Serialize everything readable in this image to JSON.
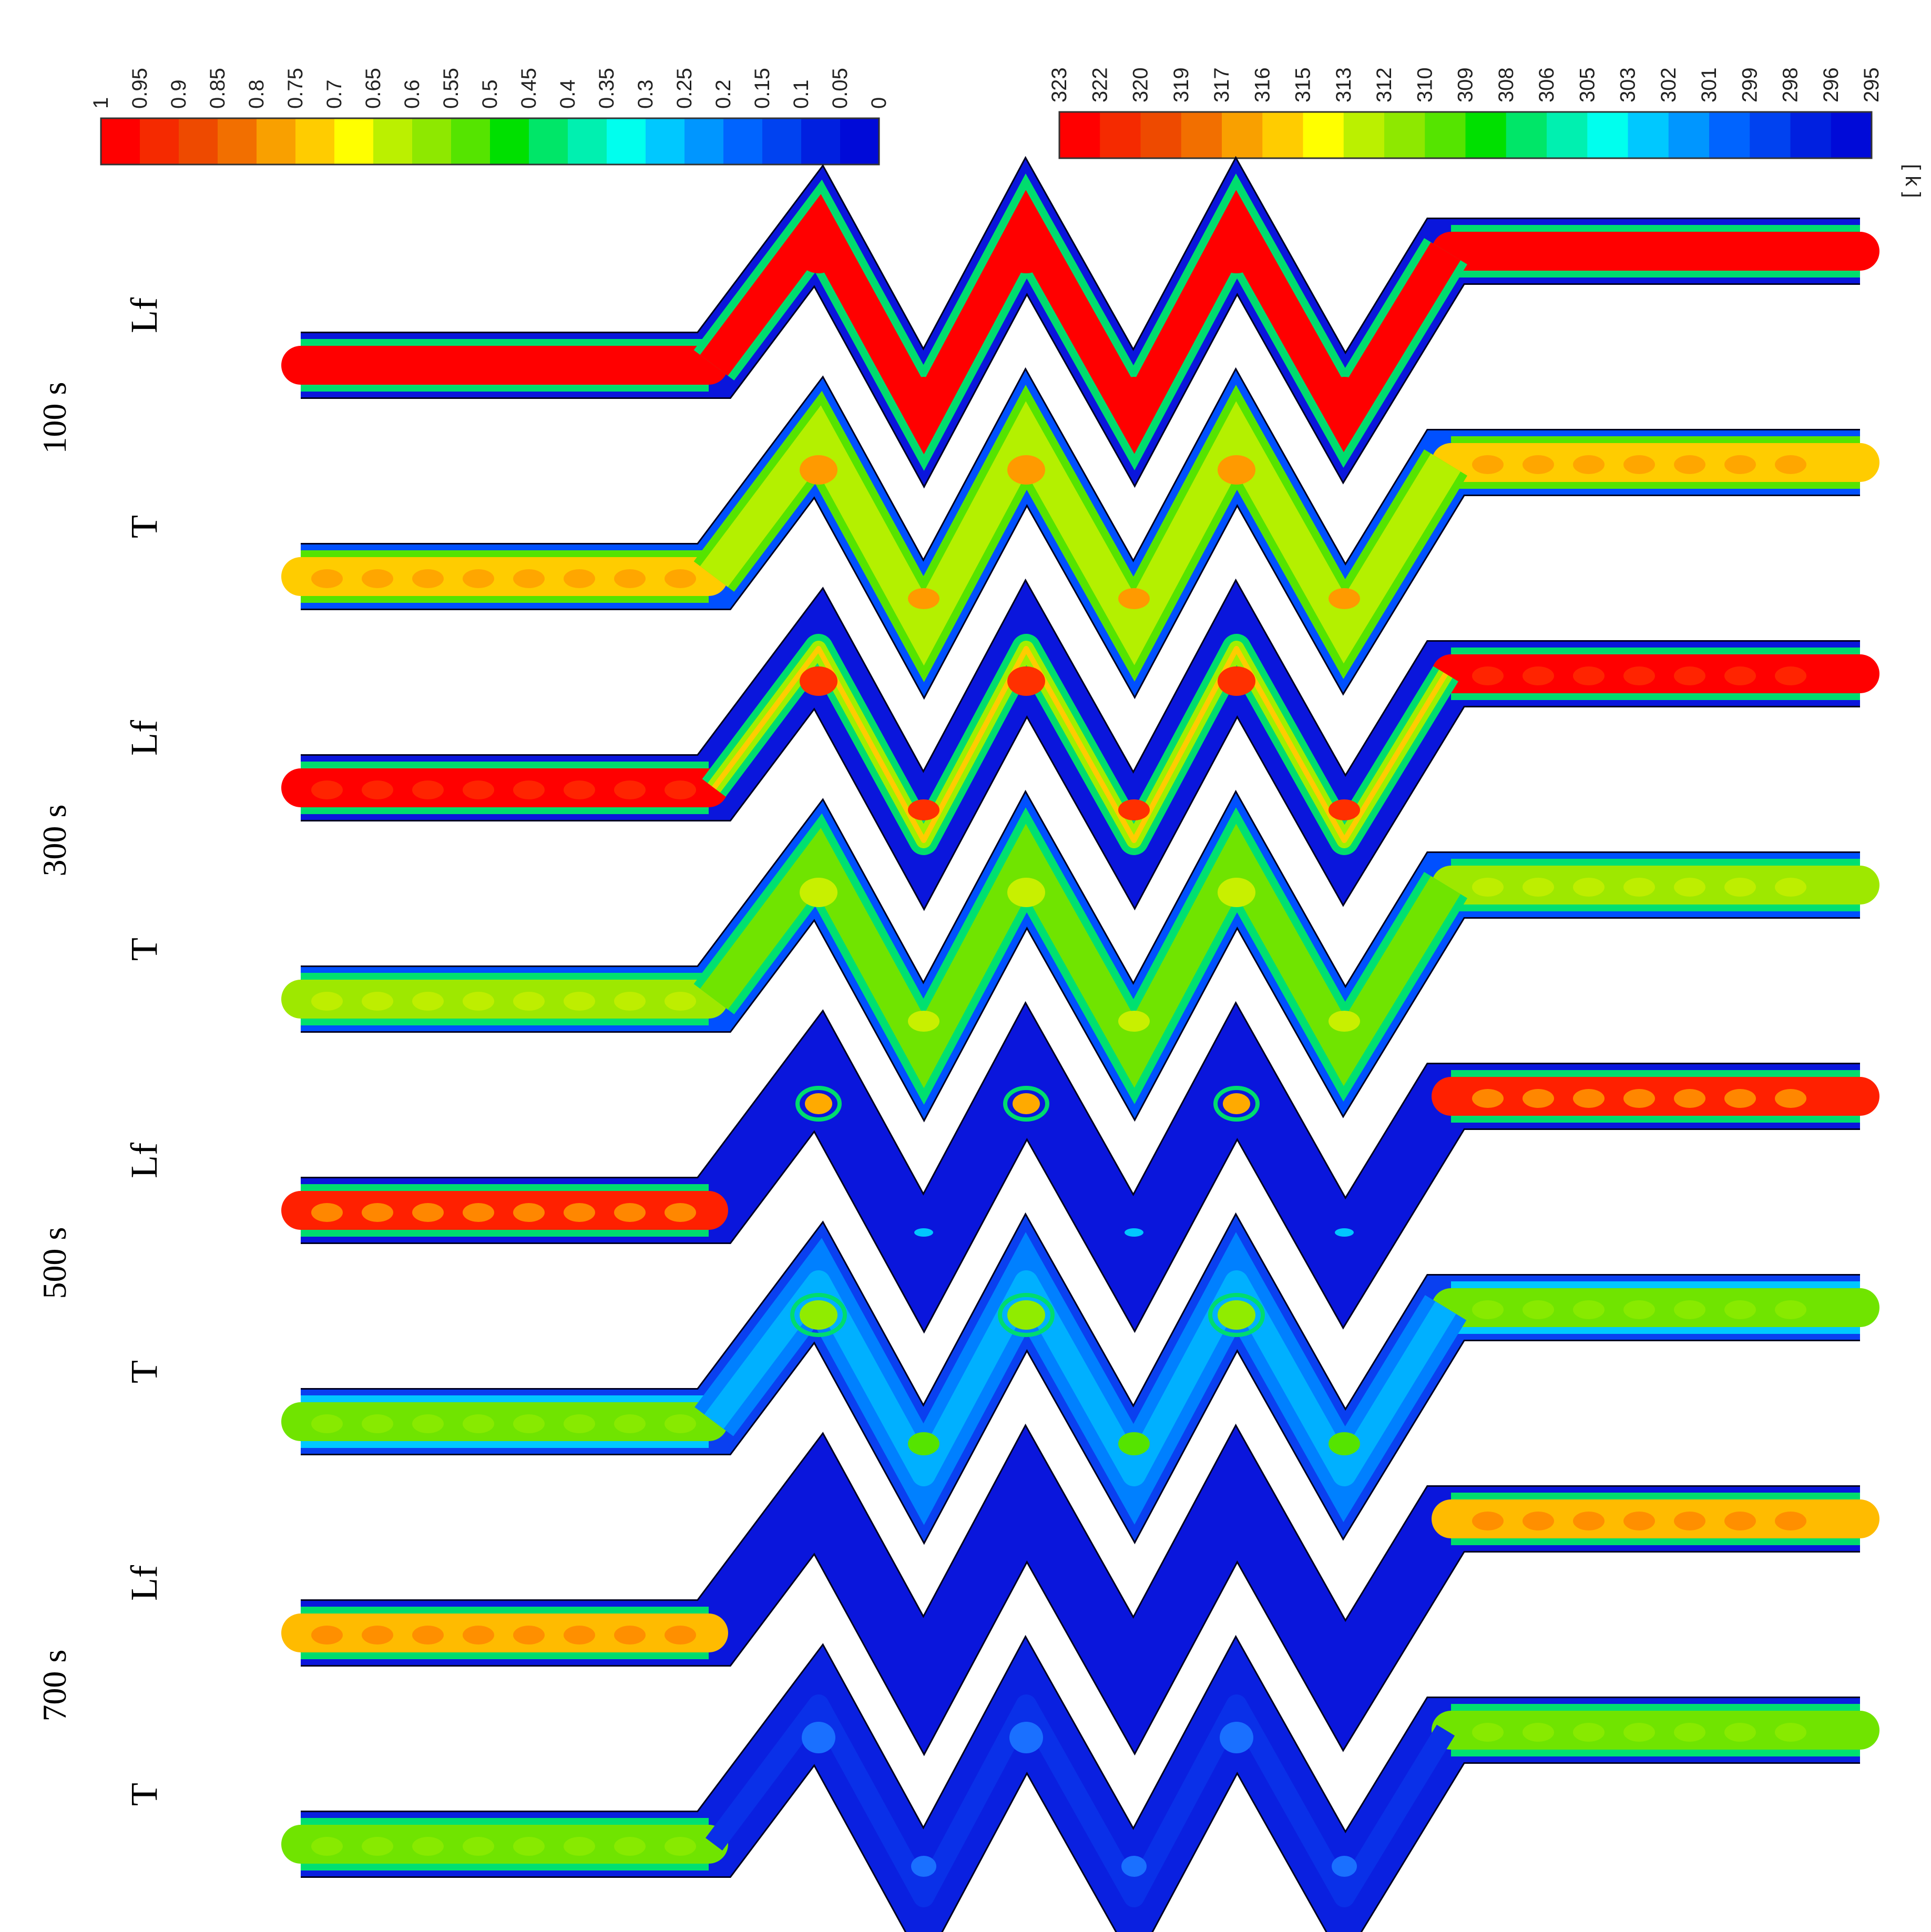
{
  "colorbars": {
    "liquid_fraction": {
      "ticks": [
        "1",
        "0.95",
        "0.9",
        "0.85",
        "0.8",
        "0.75",
        "0.7",
        "0.65",
        "0.6",
        "0.55",
        "0.5",
        "0.45",
        "0.4",
        "0.35",
        "0.3",
        "0.25",
        "0.2",
        "0.15",
        "0.1",
        "0.05",
        "0"
      ]
    },
    "temperature": {
      "ticks": [
        "323",
        "322",
        "320",
        "319",
        "317",
        "316",
        "315",
        "313",
        "312",
        "310",
        "309",
        "308",
        "306",
        "305",
        "303",
        "302",
        "301",
        "299",
        "298",
        "296",
        "295"
      ],
      "unit": "[ k ]"
    },
    "colors": [
      "#ff0000",
      "#f52a00",
      "#ee4a00",
      "#f26f00",
      "#f9a000",
      "#ffcc00",
      "#ffff00",
      "#bbf000",
      "#8ee800",
      "#55e400",
      "#00e000",
      "#00e668",
      "#00f0b0",
      "#00ffee",
      "#00c8ff",
      "#0096ff",
      "#0064ff",
      "#0042f0",
      "#0020e0",
      "#000ad8"
    ]
  },
  "rows": [
    {
      "time": "100 s",
      "var": "Lf",
      "wall": "#0a16dc",
      "mid": "#00dc6e",
      "core": "#ff0000",
      "zig_core": "#ff0000",
      "zig_mode": "full",
      "spots": "#ff0000"
    },
    {
      "time": "",
      "var": "T",
      "wall": "#0050ff",
      "mid": "#55e400",
      "core": "#ffcc00",
      "zig_core": "#b4f000",
      "zig_mode": "full",
      "spots": "#ff9a00"
    },
    {
      "time": "300 s",
      "var": "Lf",
      "wall": "#0a16dc",
      "mid": "#00dc6e",
      "core": "#ff0000",
      "zig_core": "#9ef000",
      "zig_mode": "thin",
      "spots": "#ff3000"
    },
    {
      "time": "",
      "var": "T",
      "wall": "#0050ff",
      "mid": "#00e070",
      "core": "#9ee800",
      "zig_core": "#70e400",
      "zig_mode": "full",
      "spots": "#c8f000"
    },
    {
      "time": "500 s",
      "var": "Lf",
      "wall": "#0a16dc",
      "mid": "#00dc6e",
      "core": "#ff2000",
      "zig_core": "#0a16dc",
      "zig_mode": "spots",
      "spots": "#ffaa00"
    },
    {
      "time": "",
      "var": "T",
      "wall": "#0a40f0",
      "mid": "#00c8ff",
      "core": "#70e400",
      "zig_core": "#00b0ff",
      "zig_mode": "light",
      "spots": "#90ec00"
    },
    {
      "time": "700 s",
      "var": "Lf",
      "wall": "#0a16dc",
      "mid": "#00dc6e",
      "core": "#ffbb00",
      "zig_core": "#0a16dc",
      "zig_mode": "none",
      "spots": "#ff8000"
    },
    {
      "time": "",
      "var": "T",
      "wall": "#0a20e0",
      "mid": "#00e070",
      "core": "#70e400",
      "zig_core": "#0a30e8",
      "zig_mode": "faint",
      "spots": "#90ec00"
    }
  ]
}
